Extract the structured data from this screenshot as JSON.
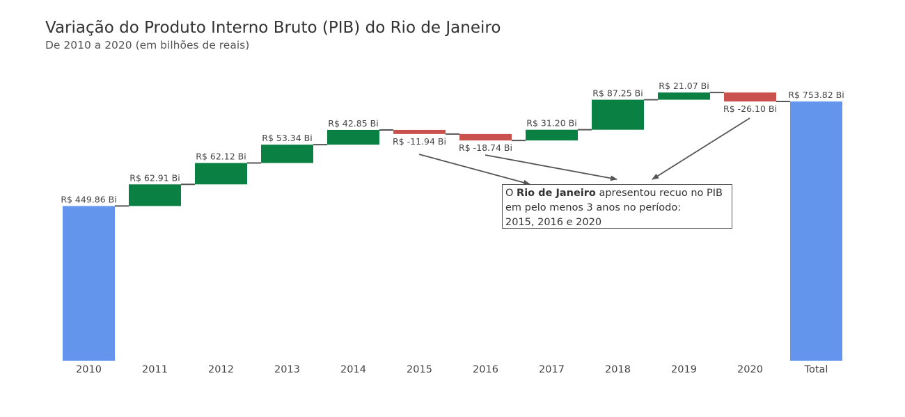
{
  "chart_data": {
    "type": "waterfall",
    "title": "Variação do Produto Interno Bruto (PIB) do Rio de Janeiro",
    "subtitle": "De 2010 a 2020 (em bilhões de reais)",
    "categories": [
      "2010",
      "2011",
      "2012",
      "2013",
      "2014",
      "2015",
      "2016",
      "2017",
      "2018",
      "2019",
      "2020",
      "Total"
    ],
    "values": [
      449.86,
      62.91,
      62.12,
      53.34,
      42.85,
      -11.94,
      -18.74,
      31.2,
      87.25,
      21.07,
      -26.1,
      753.82
    ],
    "measure": [
      "absolute",
      "relative",
      "relative",
      "relative",
      "relative",
      "relative",
      "relative",
      "relative",
      "relative",
      "relative",
      "relative",
      "total"
    ],
    "value_labels": [
      "R$ 449.86 Bi",
      "R$ 62.91 Bi",
      "R$ 62.12 Bi",
      "R$ 53.34 Bi",
      "R$ 42.85 Bi",
      "R$ -11.94 Bi",
      "R$ -18.74 Bi",
      "R$ 31.20 Bi",
      "R$ 87.25 Bi",
      "R$ 21.07 Bi",
      "R$ -26.10 Bi",
      "R$ 753.82 Bi"
    ],
    "ylim": [
      0,
      760
    ],
    "grid": false,
    "colors": {
      "total": "#6495ED",
      "increase": "#0B8043",
      "decrease": "#C9524F",
      "connector": "#555555"
    },
    "annotation": {
      "prefix": "O ",
      "bold": "Rio de Janeiro",
      "line1_rest": " apresentou recuo no PIB",
      "line2": "em pelo menos 3 anos no período:",
      "line3": "2015, 2016 e 2020",
      "targets": [
        "2015",
        "2016",
        "2020"
      ]
    }
  }
}
